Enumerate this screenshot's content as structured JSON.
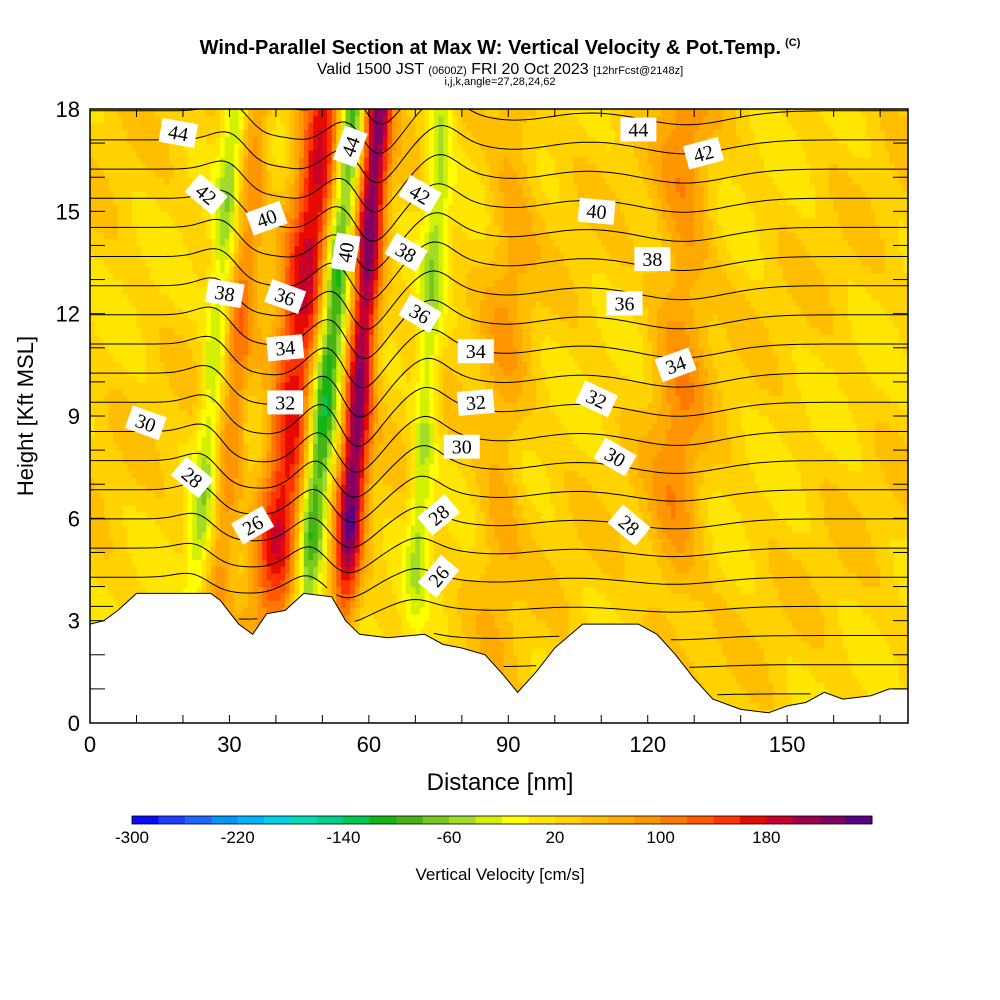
{
  "header": {
    "title": "Wind-Parallel Section at Max W: Vertical Velocity & Pot.Temp.",
    "title_mark": "(C)",
    "valid_prefix": "Valid 1500 JST",
    "valid_utc": "(0600Z)",
    "valid_date": "FRI 20 Oct 2023",
    "valid_fcst": "[12hrFcst@2148z]",
    "ijk_line": "i,j,k,angle=27,28,24,62"
  },
  "chart_data": {
    "type": "heatmap",
    "xlabel": "Distance [nm]",
    "ylabel": "Height [Kft MSL]",
    "xlim": [
      0,
      176
    ],
    "ylim": [
      0,
      18
    ],
    "x_ticks": [
      0,
      30,
      60,
      90,
      120,
      150
    ],
    "y_ticks": [
      0,
      3,
      6,
      9,
      12,
      15,
      18
    ],
    "field_fill": "Vertical Velocity [cm/s]",
    "field_contour": "Potential Temperature",
    "colorbar": {
      "label": "Vertical Velocity [cm/s]",
      "tick_labels": [
        -300,
        -220,
        -140,
        -60,
        20,
        100,
        180
      ],
      "min": -300,
      "step": 20,
      "colors": [
        "#0a0aff",
        "#1e3cff",
        "#1e64ff",
        "#0096ff",
        "#00b4ff",
        "#00d2e6",
        "#00dcb4",
        "#00d28c",
        "#00c850",
        "#14b414",
        "#46b414",
        "#78c81e",
        "#a0dc28",
        "#d2f000",
        "#ffff00",
        "#ffe600",
        "#ffd200",
        "#ffbe00",
        "#ffaa00",
        "#ff9600",
        "#ff7800",
        "#ff5a00",
        "#ff3200",
        "#e60a00",
        "#c8002d",
        "#a00050",
        "#82005f",
        "#5a0082"
      ]
    },
    "terrain": [
      [
        0,
        2.9
      ],
      [
        3,
        3.0
      ],
      [
        6,
        3.3
      ],
      [
        10,
        3.8
      ],
      [
        26,
        3.8
      ],
      [
        28,
        3.6
      ],
      [
        32,
        2.9
      ],
      [
        35,
        2.6
      ],
      [
        38,
        3.2
      ],
      [
        42,
        3.3
      ],
      [
        46,
        3.8
      ],
      [
        52,
        3.7
      ],
      [
        55,
        3.0
      ],
      [
        58,
        2.6
      ],
      [
        64,
        2.5
      ],
      [
        72,
        2.6
      ],
      [
        76,
        2.3
      ],
      [
        80,
        2.2
      ],
      [
        85,
        2.0
      ],
      [
        89,
        1.4
      ],
      [
        92,
        0.9
      ],
      [
        96,
        1.5
      ],
      [
        100,
        2.2
      ],
      [
        106,
        2.9
      ],
      [
        118,
        2.9
      ],
      [
        122,
        2.6
      ],
      [
        126,
        2.0
      ],
      [
        130,
        1.3
      ],
      [
        134,
        0.7
      ],
      [
        140,
        0.4
      ],
      [
        146,
        0.3
      ],
      [
        150,
        0.5
      ],
      [
        154,
        0.6
      ],
      [
        158,
        0.9
      ],
      [
        162,
        0.7
      ],
      [
        168,
        0.8
      ],
      [
        172,
        1.0
      ],
      [
        176,
        1.0
      ]
    ],
    "updrafts": [
      {
        "x": 41,
        "w": 150,
        "tilt": 0.8,
        "width": 5
      },
      {
        "x": 56,
        "w": 200,
        "tilt": 0.5,
        "width": 3
      },
      {
        "x": 29,
        "w": 70,
        "tilt": 0.6,
        "width": 3
      },
      {
        "x": 126,
        "w": 60,
        "tilt": 0.2,
        "width": 6
      },
      {
        "x": 88,
        "w": 40,
        "tilt": 0.3,
        "width": 5
      }
    ],
    "downdrafts": [
      {
        "x": 48,
        "w": -150,
        "tilt": 0.7,
        "width": 3
      },
      {
        "x": 24,
        "w": -70,
        "tilt": 0.6,
        "width": 2.5
      },
      {
        "x": 71,
        "w": -70,
        "tilt": 0.4,
        "width": 2.5
      }
    ],
    "contour_labels": [
      {
        "text": "44",
        "x": 19,
        "y": 17.3,
        "angle": 10
      },
      {
        "text": "44",
        "x": 56,
        "y": 16.9,
        "angle": -70
      },
      {
        "text": "44",
        "x": 118,
        "y": 17.4,
        "angle": 0
      },
      {
        "text": "42",
        "x": 25,
        "y": 15.5,
        "angle": 40
      },
      {
        "text": "42",
        "x": 71,
        "y": 15.5,
        "angle": 30
      },
      {
        "text": "42",
        "x": 132,
        "y": 16.7,
        "angle": -15
      },
      {
        "text": "40",
        "x": 38,
        "y": 14.8,
        "angle": -20
      },
      {
        "text": "40",
        "x": 55,
        "y": 13.8,
        "angle": -80
      },
      {
        "text": "40",
        "x": 109,
        "y": 15.0,
        "angle": 5
      },
      {
        "text": "38",
        "x": 29,
        "y": 12.6,
        "angle": 10
      },
      {
        "text": "38",
        "x": 68,
        "y": 13.8,
        "angle": 30
      },
      {
        "text": "38",
        "x": 121,
        "y": 13.6,
        "angle": 0
      },
      {
        "text": "36",
        "x": 42,
        "y": 12.5,
        "angle": 20
      },
      {
        "text": "36",
        "x": 71,
        "y": 12.0,
        "angle": 30
      },
      {
        "text": "36",
        "x": 115,
        "y": 12.3,
        "angle": 0
      },
      {
        "text": "34",
        "x": 42,
        "y": 11.0,
        "angle": -5
      },
      {
        "text": "34",
        "x": 83,
        "y": 10.9,
        "angle": 0
      },
      {
        "text": "34",
        "x": 126,
        "y": 10.5,
        "angle": -20
      },
      {
        "text": "32",
        "x": 42,
        "y": 9.4,
        "angle": 0
      },
      {
        "text": "32",
        "x": 83,
        "y": 9.4,
        "angle": -5
      },
      {
        "text": "32",
        "x": 109,
        "y": 9.5,
        "angle": 25
      },
      {
        "text": "30",
        "x": 12,
        "y": 8.8,
        "angle": 20
      },
      {
        "text": "30",
        "x": 80,
        "y": 8.1,
        "angle": 0
      },
      {
        "text": "30",
        "x": 113,
        "y": 7.8,
        "angle": 30
      },
      {
        "text": "28",
        "x": 22,
        "y": 7.2,
        "angle": 40
      },
      {
        "text": "28",
        "x": 75,
        "y": 6.1,
        "angle": -40
      },
      {
        "text": "28",
        "x": 116,
        "y": 5.8,
        "angle": 40
      },
      {
        "text": "26",
        "x": 35,
        "y": 5.8,
        "angle": -30
      },
      {
        "text": "26",
        "x": 75,
        "y": 4.3,
        "angle": -50
      }
    ]
  }
}
